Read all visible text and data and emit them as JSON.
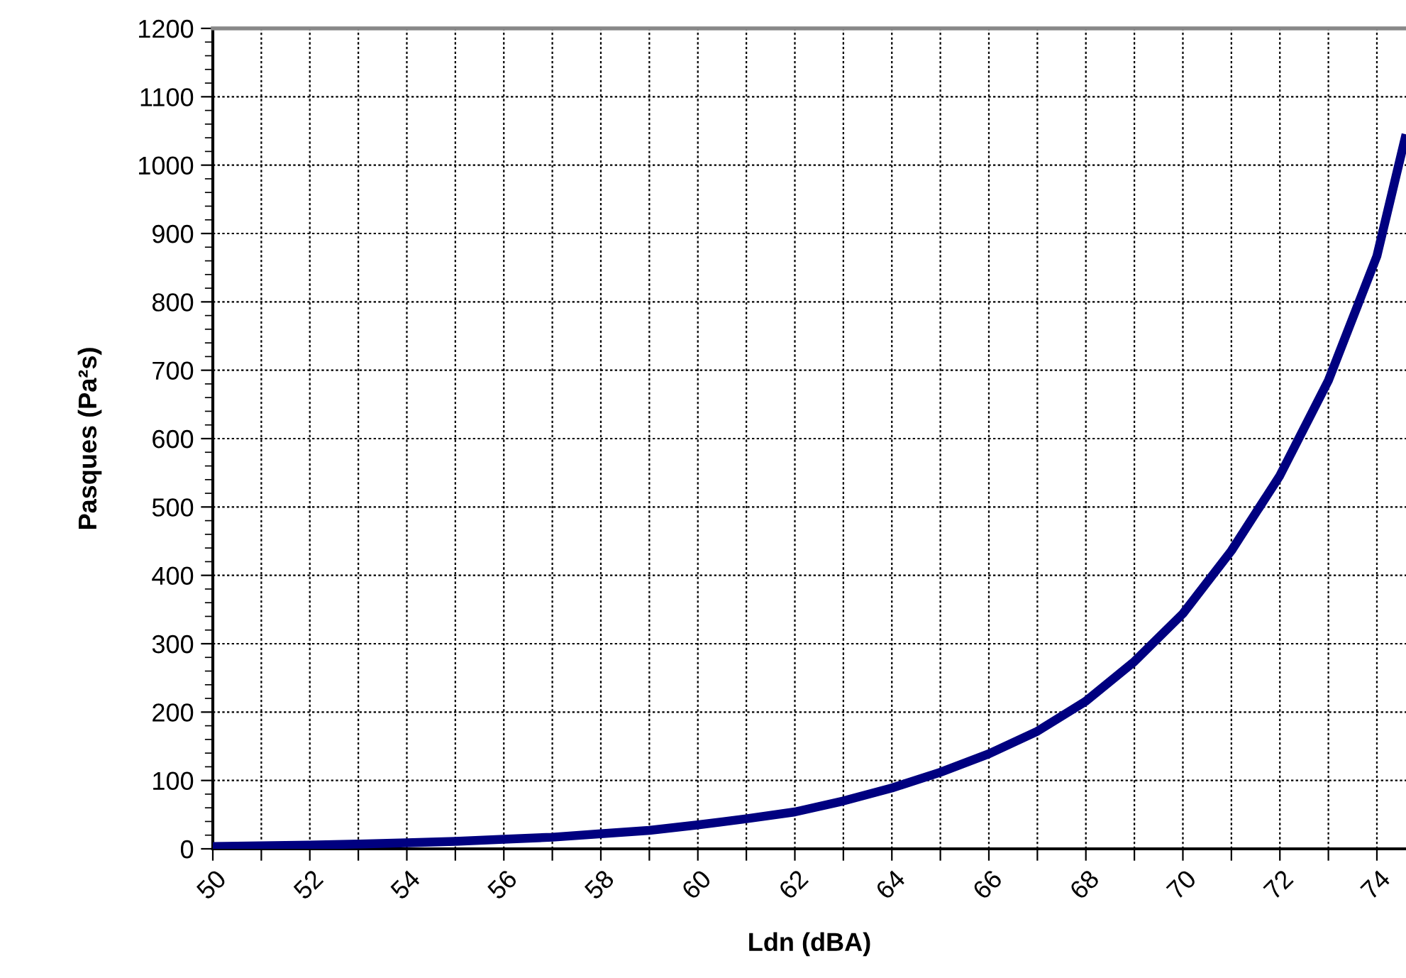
{
  "chart_data": {
    "type": "line",
    "xlabel": "Ldn (dBA)",
    "ylabel": "Pasques (Pa²s)",
    "x": [
      50,
      51,
      52,
      53,
      54,
      55,
      56,
      57,
      58,
      59,
      60,
      61,
      62,
      63,
      64,
      65,
      66,
      67,
      68,
      69,
      70,
      71,
      72,
      73,
      74,
      74.6
    ],
    "series": [
      {
        "color": "#000080",
        "values": [
          3.5,
          4.4,
          5.5,
          7,
          8.7,
          11,
          14,
          17,
          22,
          27,
          35,
          44,
          54,
          70,
          89,
          112,
          139,
          172,
          216,
          274,
          344,
          436,
          546,
          685,
          867,
          1045
        ]
      }
    ],
    "xlim": [
      50,
      74.6
    ],
    "ylim": [
      0,
      1200
    ],
    "xticks": [
      50,
      {
        "value": 51,
        "label": null
      },
      52,
      {
        "value": 53,
        "label": null
      },
      54,
      {
        "value": 55,
        "label": null
      },
      56,
      {
        "value": 57,
        "label": null
      },
      58,
      {
        "value": 59,
        "label": null
      },
      60,
      {
        "value": 61,
        "label": null
      },
      62,
      {
        "value": 63,
        "label": null
      },
      64,
      {
        "value": 65,
        "label": null
      },
      66,
      {
        "value": 67,
        "label": null
      },
      68,
      {
        "value": 69,
        "label": null
      },
      70,
      {
        "value": 71,
        "label": null
      },
      72,
      {
        "value": 73,
        "label": null
      },
      74
    ],
    "yticks": [
      0,
      100,
      200,
      300,
      400,
      500,
      600,
      700,
      800,
      900,
      1000,
      1100,
      1200
    ],
    "grid": true,
    "marker": "none",
    "line_style": "solid",
    "legend": false
  }
}
